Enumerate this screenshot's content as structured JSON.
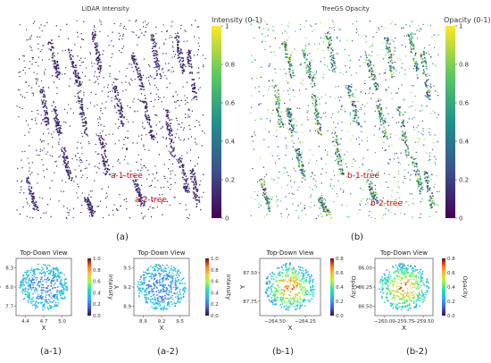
{
  "figure": {
    "captions": [
      "(a)",
      "(b)",
      "(a-1)",
      "(a-2)",
      "(b-1)",
      "(b-2)"
    ],
    "colors": {
      "viridis_dark": "#440154",
      "viridis_mid": "#21918c",
      "viridis_light": "#fde725",
      "label_red": "#cc0000"
    }
  },
  "chart_data": [
    {
      "id": "a",
      "type": "scatter",
      "title": "LiDAR Intensity",
      "colorbar": {
        "label": "Intensity (0-1)",
        "ticks": [
          "0",
          "0.2",
          "0.4",
          "0.6",
          "0.8",
          "1"
        ],
        "colormap": "viridis"
      },
      "annotations": [
        "a-1-tree",
        "a-2-tree"
      ]
    },
    {
      "id": "b",
      "type": "scatter",
      "title": "TreeGS Opacity",
      "colorbar": {
        "label": "Opacity (0-1)",
        "ticks": [
          "0",
          "0.2",
          "0.4",
          "0.6",
          "0.8",
          "1"
        ],
        "colormap": "viridis"
      },
      "annotations": [
        "b-1-tree",
        "b-2-tree"
      ]
    },
    {
      "id": "a-1",
      "type": "scatter",
      "title": "Top-Down View",
      "xlabel": "X",
      "ylabel": "Y",
      "xticks": [
        "4.4",
        "4.7",
        "5.0"
      ],
      "yticks": [
        "8.3",
        "8.0",
        "7.7"
      ],
      "colorbar": {
        "label": "Intensity",
        "ticks": [
          "0.0",
          "0.2",
          "0.4",
          "0.6",
          "0.8",
          "1.0"
        ],
        "colormap": "turbo"
      }
    },
    {
      "id": "a-2",
      "type": "scatter",
      "title": "Top-Down View",
      "xlabel": "X",
      "ylabel": "Y",
      "xticks": [
        "8.9",
        "9.2",
        "9.5"
      ],
      "yticks": [
        "9.5",
        "9.2",
        "8.9"
      ],
      "colorbar": {
        "label": "Intensity",
        "ticks": [
          "0.0",
          "0.2",
          "0.4",
          "0.6",
          "0.8",
          "1.0"
        ],
        "colormap": "turbo"
      }
    },
    {
      "id": "b-1",
      "type": "scatter",
      "title": "Top-Down View",
      "xlabel": "X",
      "ylabel": "Y",
      "xticks": [
        "−264.50",
        "−264.25"
      ],
      "yticks": [
        "87.50",
        "87.75"
      ],
      "colorbar": {
        "label": "Opacity",
        "ticks": [
          "0.0",
          "0.2",
          "0.4",
          "0.6",
          "0.8"
        ],
        "colormap": "turbo"
      }
    },
    {
      "id": "b-2",
      "type": "scatter",
      "title": "Top-Down View",
      "xlabel": "X",
      "ylabel": "Y",
      "xticks": [
        "−260.00",
        "−259.75",
        "−259.50"
      ],
      "yticks": [
        "86.00",
        "86.25",
        "86.50"
      ],
      "colorbar": {
        "label": "Opacity",
        "ticks": [
          "0.0",
          "0.2",
          "0.4",
          "0.6",
          "0.8"
        ],
        "colormap": "turbo"
      }
    }
  ]
}
